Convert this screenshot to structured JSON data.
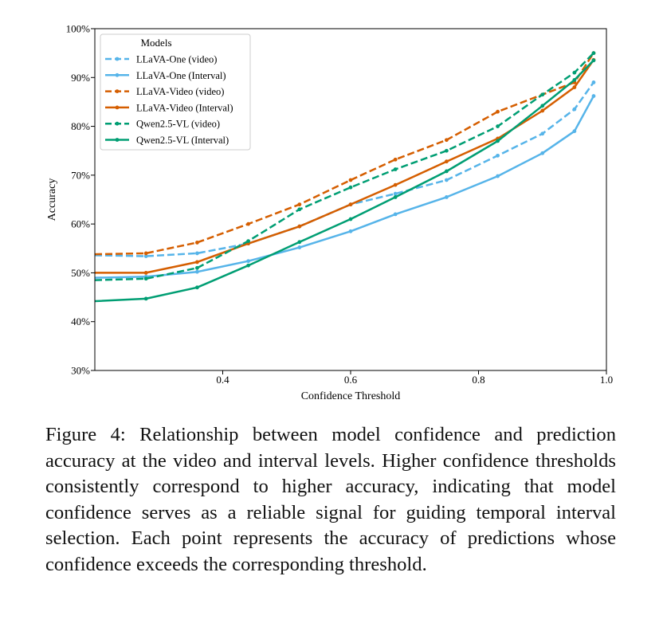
{
  "chart_data": {
    "type": "line",
    "xlabel": "Confidence Threshold",
    "ylabel": "Accuracy",
    "xlim": [
      0.2,
      1.0
    ],
    "ylim": [
      30,
      100
    ],
    "xticks": [
      {
        "value": 0.4,
        "label": "0.4"
      },
      {
        "value": 0.6,
        "label": "0.6"
      },
      {
        "value": 0.8,
        "label": "0.8"
      },
      {
        "value": 1.0,
        "label": "1.0"
      }
    ],
    "yticks": [
      {
        "value": 30,
        "label": "30%"
      },
      {
        "value": 40,
        "label": "40%"
      },
      {
        "value": 50,
        "label": "50%"
      },
      {
        "value": 60,
        "label": "60%"
      },
      {
        "value": 70,
        "label": "70%"
      },
      {
        "value": 80,
        "label": "80%"
      },
      {
        "value": 90,
        "label": "90%"
      },
      {
        "value": 100,
        "label": "100%"
      }
    ],
    "grid": false,
    "legend": {
      "title": "Models",
      "position": "top-left"
    },
    "series": [
      {
        "name": "LLaVA-One (video)",
        "color": "#56B4E9",
        "dash": true,
        "x": [
          0.2,
          0.28,
          0.36,
          0.44,
          0.52,
          0.6,
          0.67,
          0.75,
          0.83,
          0.9,
          0.95,
          0.98
        ],
        "y": [
          53.6,
          53.4,
          54.0,
          56.0,
          59.5,
          64.0,
          66.2,
          69.0,
          74.0,
          78.5,
          83.5,
          89.0
        ]
      },
      {
        "name": "LLaVA-One (Interval)",
        "color": "#56B4E9",
        "dash": false,
        "x": [
          0.2,
          0.28,
          0.36,
          0.44,
          0.52,
          0.6,
          0.67,
          0.75,
          0.83,
          0.9,
          0.95,
          0.98
        ],
        "y": [
          49.0,
          49.2,
          50.2,
          52.4,
          55.2,
          58.5,
          62.0,
          65.5,
          69.8,
          74.5,
          79.0,
          86.2
        ]
      },
      {
        "name": "LLaVA-Video (video)",
        "color": "#D55E00",
        "dash": true,
        "x": [
          0.2,
          0.28,
          0.36,
          0.44,
          0.52,
          0.6,
          0.67,
          0.75,
          0.83,
          0.9,
          0.95,
          0.98
        ],
        "y": [
          53.8,
          54.0,
          56.2,
          60.0,
          64.0,
          69.0,
          73.2,
          77.2,
          83.0,
          86.5,
          89.0,
          95.0
        ]
      },
      {
        "name": "LLaVA-Video (Interval)",
        "color": "#D55E00",
        "dash": false,
        "x": [
          0.2,
          0.28,
          0.36,
          0.44,
          0.52,
          0.6,
          0.67,
          0.75,
          0.83,
          0.9,
          0.95,
          0.98
        ],
        "y": [
          50.0,
          50.0,
          52.2,
          56.0,
          59.5,
          64.0,
          68.0,
          72.8,
          77.5,
          83.2,
          88.0,
          93.6
        ]
      },
      {
        "name": "Qwen2.5-VL (video)",
        "color": "#009E73",
        "dash": true,
        "x": [
          0.2,
          0.28,
          0.36,
          0.44,
          0.52,
          0.6,
          0.67,
          0.75,
          0.83,
          0.9,
          0.95,
          0.98
        ],
        "y": [
          48.5,
          48.8,
          51.0,
          56.5,
          63.0,
          67.5,
          71.2,
          75.0,
          80.0,
          86.5,
          91.0,
          95.0
        ]
      },
      {
        "name": "Qwen2.5-VL (Interval)",
        "color": "#009E73",
        "dash": false,
        "x": [
          0.2,
          0.28,
          0.36,
          0.44,
          0.52,
          0.6,
          0.67,
          0.75,
          0.83,
          0.9,
          0.95,
          0.98
        ],
        "y": [
          44.2,
          44.7,
          47.0,
          51.5,
          56.3,
          61.0,
          65.5,
          70.8,
          77.0,
          84.2,
          89.5,
          93.5
        ]
      }
    ]
  },
  "caption": "Figure 4: Relationship between model confidence and prediction accuracy at the video and interval levels. Higher confidence thresholds consistently correspond to higher accuracy, indicating that model confidence serves as a reliable signal for guiding temporal interval selection. Each point represents the accuracy of predictions whose confidence exceeds the corresponding threshold."
}
